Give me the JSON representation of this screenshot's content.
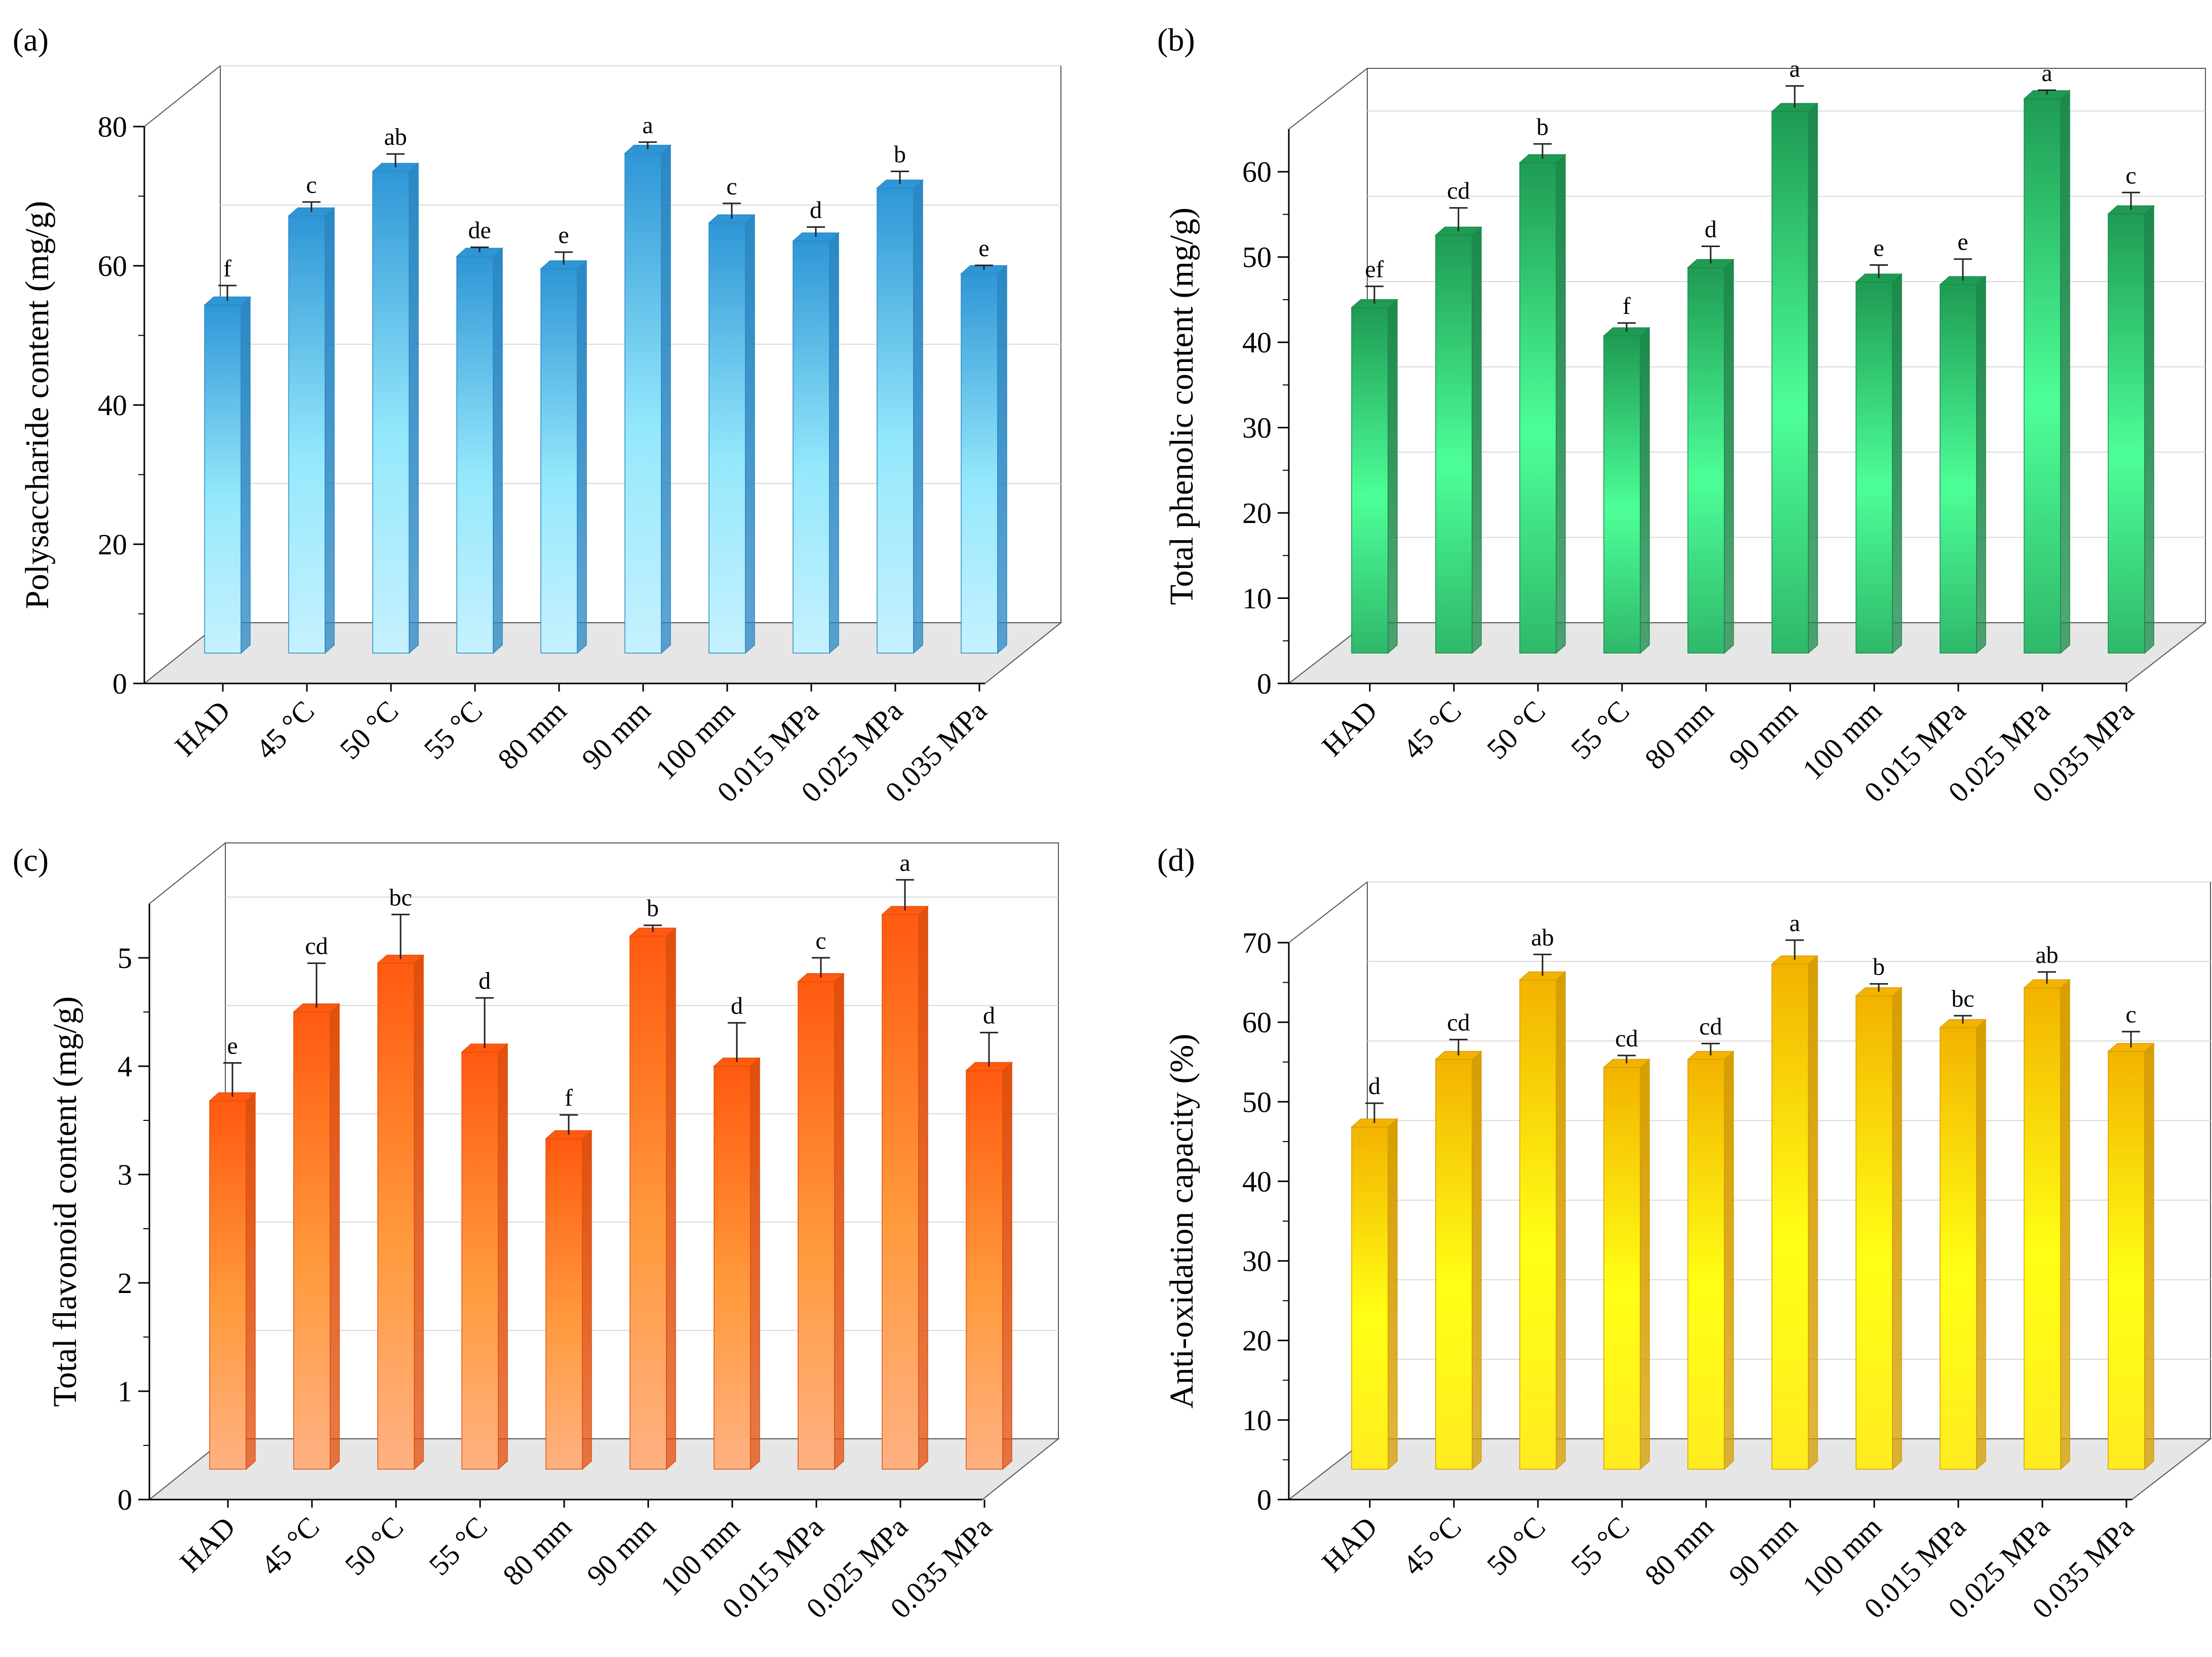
{
  "chart_data": [
    {
      "panel": "(a)",
      "type": "bar",
      "ylabel": "Polysaccharide content (mg/g)",
      "ylim": [
        0,
        80
      ],
      "yticks": [
        "0",
        "20",
        "40",
        "60",
        "80"
      ],
      "categories": [
        "HAD",
        "45 °C",
        "50 °C",
        "55 °C",
        "80 mm",
        "90 mm",
        "100 mm",
        "0.015 MPa",
        "0.025 MPa",
        "0.035 MPa"
      ],
      "values": [
        50.0,
        62.8,
        69.2,
        57.0,
        55.2,
        71.8,
        61.8,
        59.2,
        66.8,
        54.5
      ],
      "errors": [
        2.8,
        2.0,
        2.5,
        1.3,
        2.4,
        1.6,
        2.8,
        2.0,
        2.4,
        1.2
      ],
      "significance": [
        "f",
        "c",
        "ab",
        "de",
        "e",
        "a",
        "c",
        "d",
        "b",
        "e"
      ],
      "colors": {
        "top": "#2f96d6",
        "bottom": "#c6f1ff",
        "mid": "#94e8fb",
        "side": "#2a88c4"
      }
    },
    {
      "panel": "(b)",
      "type": "bar",
      "ylabel": "Total phenolic content (mg/g)",
      "ylim": [
        0,
        65
      ],
      "yticks": [
        "0",
        "10",
        "20",
        "30",
        "40",
        "50",
        "60"
      ],
      "categories": [
        "HAD",
        "45 °C",
        "50 °C",
        "55 °C",
        "80 mm",
        "90 mm",
        "100 mm",
        "0.015 MPa",
        "0.025 MPa",
        "0.035 MPa"
      ],
      "values": [
        40.5,
        49.0,
        57.5,
        37.2,
        45.2,
        63.5,
        43.5,
        43.2,
        65.0,
        51.5
      ],
      "errors": [
        2.5,
        3.2,
        2.2,
        1.5,
        2.5,
        3.0,
        2.0,
        3.0,
        1.0,
        2.5
      ],
      "significance": [
        "ef",
        "cd",
        "b",
        "f",
        "d",
        "a",
        "e",
        "e",
        "a",
        "c"
      ],
      "colors": {
        "top": "#1f9b54",
        "bottom": "#2fb86a",
        "mid": "#4dff98",
        "side": "#1b8a4b"
      }
    },
    {
      "panel": "(c)",
      "type": "bar",
      "ylabel": "Total flavonoid content (mg/g)",
      "ylim": [
        0,
        5.5
      ],
      "yticks": [
        "0",
        "1",
        "2",
        "3",
        "4",
        "5"
      ],
      "categories": [
        "HAD",
        "45 °C",
        "50 °C",
        "55 °C",
        "80 mm",
        "90 mm",
        "100 mm",
        "0.015 MPa",
        "0.025 MPa",
        "0.035 MPa"
      ],
      "values": [
        3.4,
        4.22,
        4.67,
        3.85,
        3.05,
        4.92,
        3.72,
        4.5,
        5.12,
        3.68
      ],
      "errors": [
        0.35,
        0.45,
        0.45,
        0.5,
        0.22,
        0.1,
        0.4,
        0.22,
        0.32,
        0.35
      ],
      "significance": [
        "e",
        "cd",
        "bc",
        "d",
        "f",
        "b",
        "d",
        "c",
        "a",
        "d"
      ],
      "colors": {
        "top": "#ff5a10",
        "bottom": "#ffb183",
        "mid": "#ff9a3c",
        "side": "#e04f0c"
      }
    },
    {
      "panel": "(d)",
      "type": "bar",
      "ylabel": "Anti-oxidation capacity (%)",
      "ylim": [
        0,
        70
      ],
      "yticks": [
        "0",
        "10",
        "20",
        "30",
        "40",
        "50",
        "60",
        "70"
      ],
      "categories": [
        "HAD",
        "45 °C",
        "50 °C",
        "55 °C",
        "80 mm",
        "90 mm",
        "100 mm",
        "0.015 MPa",
        "0.025 MPa",
        "0.035 MPa"
      ],
      "values": [
        43.0,
        51.5,
        61.5,
        50.5,
        51.5,
        63.5,
        59.5,
        55.5,
        60.5,
        52.5
      ],
      "errors": [
        3.0,
        2.5,
        3.2,
        1.5,
        2.0,
        3.0,
        1.5,
        1.5,
        2.0,
        2.5
      ],
      "significance": [
        "d",
        "cd",
        "ab",
        "cd",
        "cd",
        "a",
        "b",
        "bc",
        "ab",
        "c"
      ],
      "colors": {
        "top": "#f3b300",
        "bottom": "#ffec20",
        "mid": "#ffff15",
        "side": "#d69e00"
      }
    }
  ]
}
